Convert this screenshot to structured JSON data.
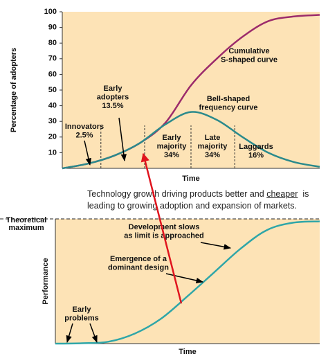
{
  "chart_data": [
    {
      "type": "line",
      "x": [
        0,
        10,
        20,
        30,
        40,
        50,
        60,
        70,
        80,
        90,
        100
      ],
      "xlim": [
        0,
        100
      ],
      "ylim": [
        0,
        100
      ],
      "yticks": [
        10,
        20,
        30,
        40,
        50,
        60,
        70,
        80,
        90,
        100
      ],
      "xlabel": "Time",
      "ylabel": "Percentage of adopters",
      "background": "#fde3b6",
      "series": [
        {
          "color": "#9c2b6b",
          "values": [
            0,
            3,
            8,
            16,
            29,
            53,
            70,
            84,
            94,
            97,
            98
          ]
        },
        {
          "color": "#2b8a8c",
          "values": [
            0,
            3,
            8,
            16,
            28,
            36,
            31,
            20,
            10,
            4,
            1
          ]
        }
      ],
      "dividers": [
        15,
        32,
        50,
        67
      ],
      "annotations": [
        {
          "lines": [
            "Cumulative",
            "S-shaped curve"
          ]
        },
        {
          "lines": [
            "Bell-shaped",
            "frequency curve"
          ]
        },
        {
          "lines": [
            "Early",
            "adopters",
            "13.5%"
          ]
        },
        {
          "lines": [
            "Innovators",
            "2.5%"
          ]
        },
        {
          "lines": [
            "Early",
            "majority",
            "34%"
          ]
        },
        {
          "lines": [
            "Late",
            "majority",
            "34%"
          ]
        },
        {
          "lines": [
            "Laggards",
            "16%"
          ]
        }
      ]
    },
    {
      "type": "line",
      "x": [
        0,
        10,
        20,
        30,
        40,
        50,
        60,
        70,
        80,
        90,
        100
      ],
      "xlim": [
        0,
        100
      ],
      "ylim": [
        0,
        100
      ],
      "xlabel": "Time",
      "ylabel": "Performance",
      "max_label": [
        "Theoretical",
        "maximum"
      ],
      "background": "#fde3b6",
      "series": [
        {
          "color": "#2fa6a8",
          "values": [
            0,
            0.3,
            1.5,
            8,
            20,
            38,
            57,
            76,
            91,
            97,
            98
          ]
        }
      ],
      "annotations": [
        {
          "lines": [
            "Development slows",
            "as limit is approached"
          ]
        },
        {
          "lines": [
            "Emergence of a",
            "dominant design"
          ]
        },
        {
          "lines": [
            "Early",
            "problems"
          ]
        }
      ]
    }
  ],
  "caption": {
    "line1": [
      "Technology growth driving products better and",
      "cheaper",
      "is"
    ],
    "line2": "leading to growing adoption and expansion of markets."
  }
}
